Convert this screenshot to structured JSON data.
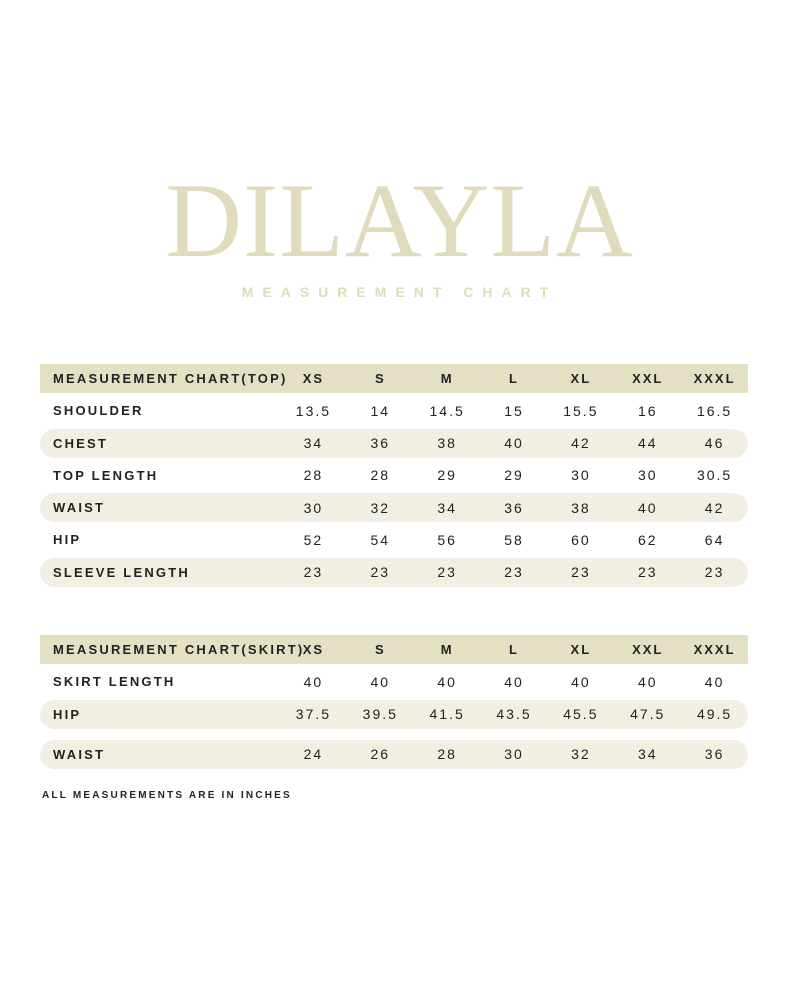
{
  "brand": {
    "name": "DILAYLA",
    "subtitle": "MEASUREMENT CHART"
  },
  "colors": {
    "brand_cream": "#DFDBBC",
    "header_row_bg": "#E3E0C4",
    "shaded_row_bg": "#F1EFE3",
    "text": "#222222",
    "background": "#FFFFFF"
  },
  "tables": [
    {
      "id": "top",
      "title": "MEASUREMENT CHART(TOP)",
      "sizes": [
        "XS",
        "S",
        "M",
        "L",
        "XL",
        "XXL",
        "XXXL"
      ],
      "rows": [
        {
          "label": "SHOULDER",
          "values": [
            "13.5",
            "14",
            "14.5",
            "15",
            "15.5",
            "16",
            "16.5"
          ],
          "shaded": false
        },
        {
          "label": "CHEST",
          "values": [
            "34",
            "36",
            "38",
            "40",
            "42",
            "44",
            "46"
          ],
          "shaded": true
        },
        {
          "label": "TOP LENGTH",
          "values": [
            "28",
            "28",
            "29",
            "29",
            "30",
            "30",
            "30.5"
          ],
          "shaded": false
        },
        {
          "label": "WAIST",
          "values": [
            "30",
            "32",
            "34",
            "36",
            "38",
            "40",
            "42"
          ],
          "shaded": true
        },
        {
          "label": "HIP",
          "values": [
            "52",
            "54",
            "56",
            "58",
            "60",
            "62",
            "64"
          ],
          "shaded": false
        },
        {
          "label": "SLEEVE LENGTH",
          "values": [
            "23",
            "23",
            "23",
            "23",
            "23",
            "23",
            "23"
          ],
          "shaded": true
        }
      ]
    },
    {
      "id": "skirt",
      "title": "MEASUREMENT CHART(SKIRT)",
      "sizes": [
        "XS",
        "S",
        "M",
        "L",
        "XL",
        "XXL",
        "XXXL"
      ],
      "rows": [
        {
          "label": "SKIRT LENGTH",
          "values": [
            "40",
            "40",
            "40",
            "40",
            "40",
            "40",
            "40"
          ],
          "shaded": false
        },
        {
          "label": "HIP",
          "values": [
            "37.5",
            "39.5",
            "41.5",
            "43.5",
            "45.5",
            "47.5",
            "49.5"
          ],
          "shaded": true
        },
        {
          "label": "WAIST",
          "values": [
            "24",
            "26",
            "28",
            "30",
            "32",
            "34",
            "36"
          ],
          "shaded": true,
          "gap_before": true
        }
      ]
    }
  ],
  "footer": {
    "note": "ALL MEASUREMENTS ARE IN INCHES"
  }
}
